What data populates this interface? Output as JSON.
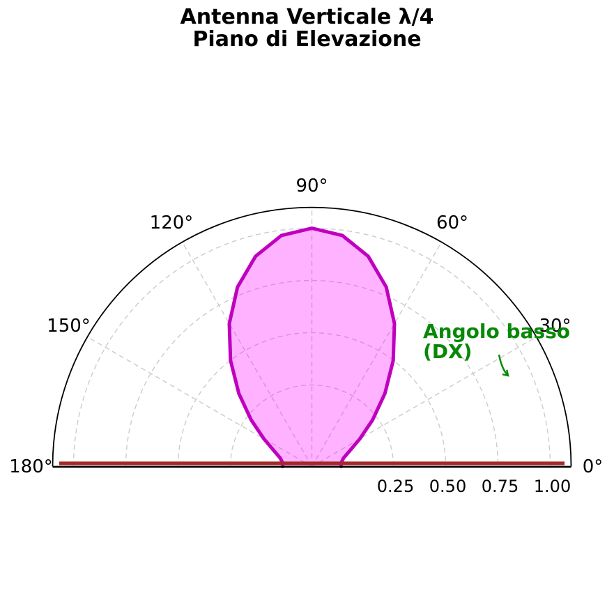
{
  "title": {
    "line1": "Antenna Verticale λ/4",
    "line2": "Piano di Elevazione"
  },
  "chart_data": {
    "type": "polar",
    "theta_unit": "degrees",
    "theta_range": [
      0,
      180
    ],
    "r_axis_max_display": 1.1,
    "grid": true,
    "angle_ticks": [
      {
        "value": 0,
        "label": "0°"
      },
      {
        "value": 30,
        "label": "30°"
      },
      {
        "value": 60,
        "label": "60°"
      },
      {
        "value": 90,
        "label": "90°"
      },
      {
        "value": 120,
        "label": "120°"
      },
      {
        "value": 150,
        "label": "150°"
      },
      {
        "value": 180,
        "label": "180°"
      }
    ],
    "r_ticks": [
      {
        "value": 0.25,
        "label": "0.25"
      },
      {
        "value": 0.5,
        "label": "0.50"
      },
      {
        "value": 0.75,
        "label": "0.75"
      },
      {
        "value": 1.0,
        "label": "1.00"
      }
    ],
    "series": [
      {
        "name": "elevation-pattern-lobe",
        "line_color": "#bf00bf",
        "fill_color": "rgba(255,0,255,0.30)",
        "points": [
          [
            0,
            0.0
          ],
          [
            7.5,
            0.002
          ],
          [
            15,
            0.017
          ],
          [
            22.5,
            0.056
          ],
          [
            30,
            0.125
          ],
          [
            37.5,
            0.226
          ],
          [
            45,
            0.354
          ],
          [
            52.5,
            0.499
          ],
          [
            60,
            0.65
          ],
          [
            67.5,
            0.789
          ],
          [
            75,
            0.901
          ],
          [
            82.5,
            0.975
          ],
          [
            90,
            1.0
          ],
          [
            97.5,
            0.975
          ],
          [
            105,
            0.901
          ],
          [
            112.5,
            0.789
          ],
          [
            120,
            0.65
          ],
          [
            127.5,
            0.499
          ],
          [
            135,
            0.354
          ],
          [
            142.5,
            0.226
          ],
          [
            150,
            0.125
          ],
          [
            157.5,
            0.056
          ],
          [
            165,
            0.017
          ],
          [
            172.5,
            0.002
          ],
          [
            180,
            0.0
          ]
        ]
      }
    ],
    "ground": {
      "name": "ground-line",
      "color": "#a42a2a"
    },
    "annotation": {
      "line1": "Angolo basso",
      "line2": "(DX)",
      "color": "#078907",
      "has_arrow": true
    },
    "colors": {
      "grid": "#cccccc",
      "spine": "#000000",
      "text": "#000000"
    }
  }
}
